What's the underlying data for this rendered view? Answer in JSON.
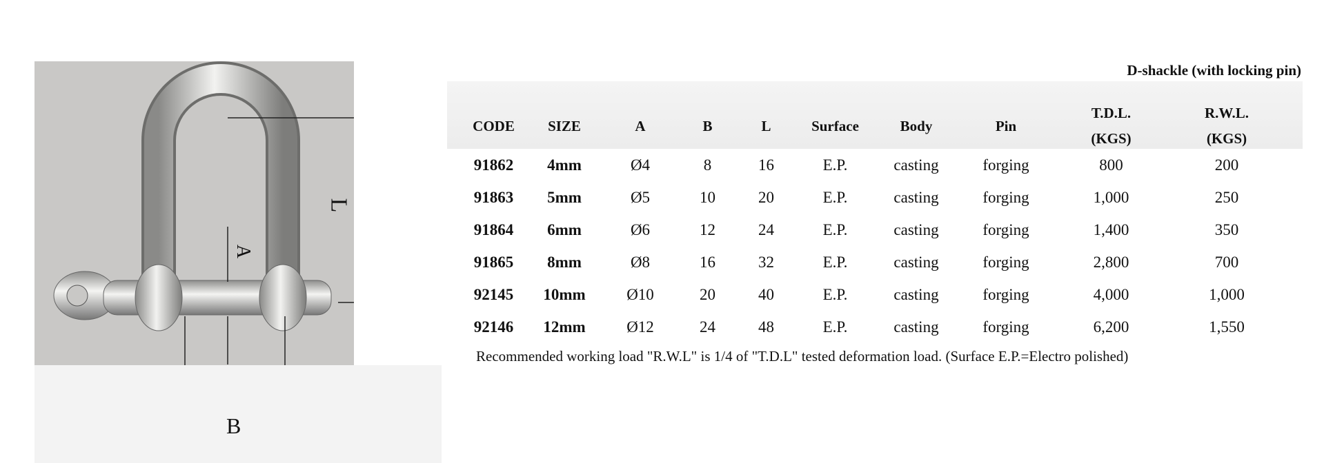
{
  "title": "D-shackle (with locking pin)",
  "diagram": {
    "labels": {
      "L": "L",
      "A": "A",
      "B": "B"
    }
  },
  "table": {
    "headers": [
      [
        "CODE"
      ],
      [
        "SIZE"
      ],
      [
        "A"
      ],
      [
        "B"
      ],
      [
        "L"
      ],
      [
        "Surface"
      ],
      [
        "Body"
      ],
      [
        "Pin"
      ],
      [
        "T.D.L.",
        "(KGS)"
      ],
      [
        "R.W.L.",
        "(KGS)"
      ]
    ],
    "rows": [
      [
        "91862",
        "4mm",
        "Ø4",
        "8",
        "16",
        "E.P.",
        "casting",
        "forging",
        "800",
        "200"
      ],
      [
        "91863",
        "5mm",
        "Ø5",
        "10",
        "20",
        "E.P.",
        "casting",
        "forging",
        "1,000",
        "250"
      ],
      [
        "91864",
        "6mm",
        "Ø6",
        "12",
        "24",
        "E.P.",
        "casting",
        "forging",
        "1,400",
        "350"
      ],
      [
        "91865",
        "8mm",
        "Ø8",
        "16",
        "32",
        "E.P.",
        "casting",
        "forging",
        "2,800",
        "700"
      ],
      [
        "92145",
        "10mm",
        "Ø10",
        "20",
        "40",
        "E.P.",
        "casting",
        "forging",
        "4,000",
        "1,000"
      ],
      [
        "92146",
        "12mm",
        "Ø12",
        "24",
        "48",
        "E.P.",
        "casting",
        "forging",
        "6,200",
        "1,550"
      ]
    ]
  },
  "note": "Recommended working load \"R.W.L\" is 1/4 of \"T.D.L\" tested deformation load. (Surface E.P.=Electro polished)"
}
